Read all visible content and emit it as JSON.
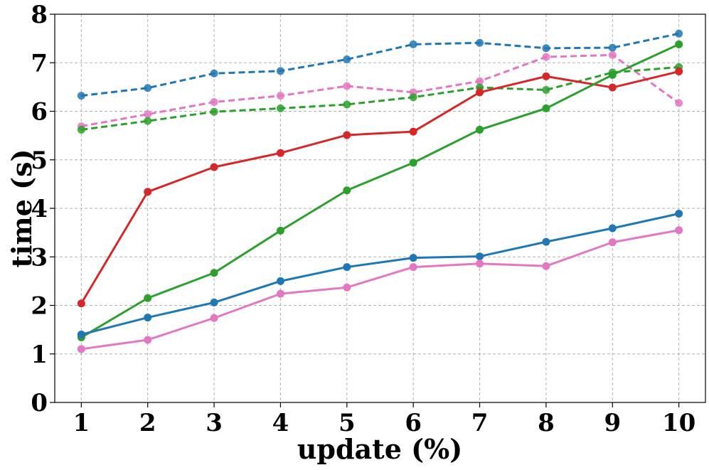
{
  "chart_data": {
    "type": "line",
    "xlabel": "update (%)",
    "ylabel": "time (s)",
    "x": [
      1,
      2,
      3,
      4,
      5,
      6,
      7,
      8,
      9,
      10
    ],
    "xlim": [
      0.6,
      10.4
    ],
    "ylim": [
      0,
      8
    ],
    "x_ticks": [
      "1",
      "2",
      "3",
      "4",
      "5",
      "6",
      "7",
      "8",
      "9",
      "10"
    ],
    "y_ticks": [
      "0",
      "1",
      "2",
      "3",
      "4",
      "5",
      "6",
      "7",
      "8"
    ],
    "grid": true,
    "legend": "none",
    "series": [
      {
        "color": "#1f77b4",
        "style": "dashed",
        "values": [
          6.32,
          6.48,
          6.78,
          6.83,
          7.07,
          7.38,
          7.41,
          7.3,
          7.31,
          7.6
        ]
      },
      {
        "color": "#e377c2",
        "style": "dashed",
        "values": [
          5.69,
          5.94,
          6.19,
          6.32,
          6.52,
          6.39,
          6.62,
          7.12,
          7.16,
          6.17
        ]
      },
      {
        "color": "#2ca02c",
        "style": "dashed",
        "values": [
          5.62,
          5.8,
          5.99,
          6.06,
          6.14,
          6.29,
          6.49,
          6.44,
          6.8,
          6.91
        ]
      },
      {
        "color": "#d62728",
        "style": "solid",
        "values": [
          2.04,
          4.34,
          4.85,
          5.14,
          5.51,
          5.58,
          6.39,
          6.72,
          6.49,
          6.82
        ]
      },
      {
        "color": "#2ca02c",
        "style": "solid",
        "values": [
          1.34,
          2.15,
          2.67,
          3.54,
          4.37,
          4.94,
          5.62,
          6.06,
          6.75,
          7.38
        ]
      },
      {
        "color": "#1f77b4",
        "style": "solid",
        "values": [
          1.4,
          1.75,
          2.06,
          2.5,
          2.79,
          2.98,
          3.01,
          3.31,
          3.59,
          3.89
        ]
      },
      {
        "color": "#e377c2",
        "style": "solid",
        "values": [
          1.1,
          1.29,
          1.74,
          2.24,
          2.37,
          2.79,
          2.86,
          2.81,
          3.3,
          3.55
        ]
      }
    ]
  }
}
